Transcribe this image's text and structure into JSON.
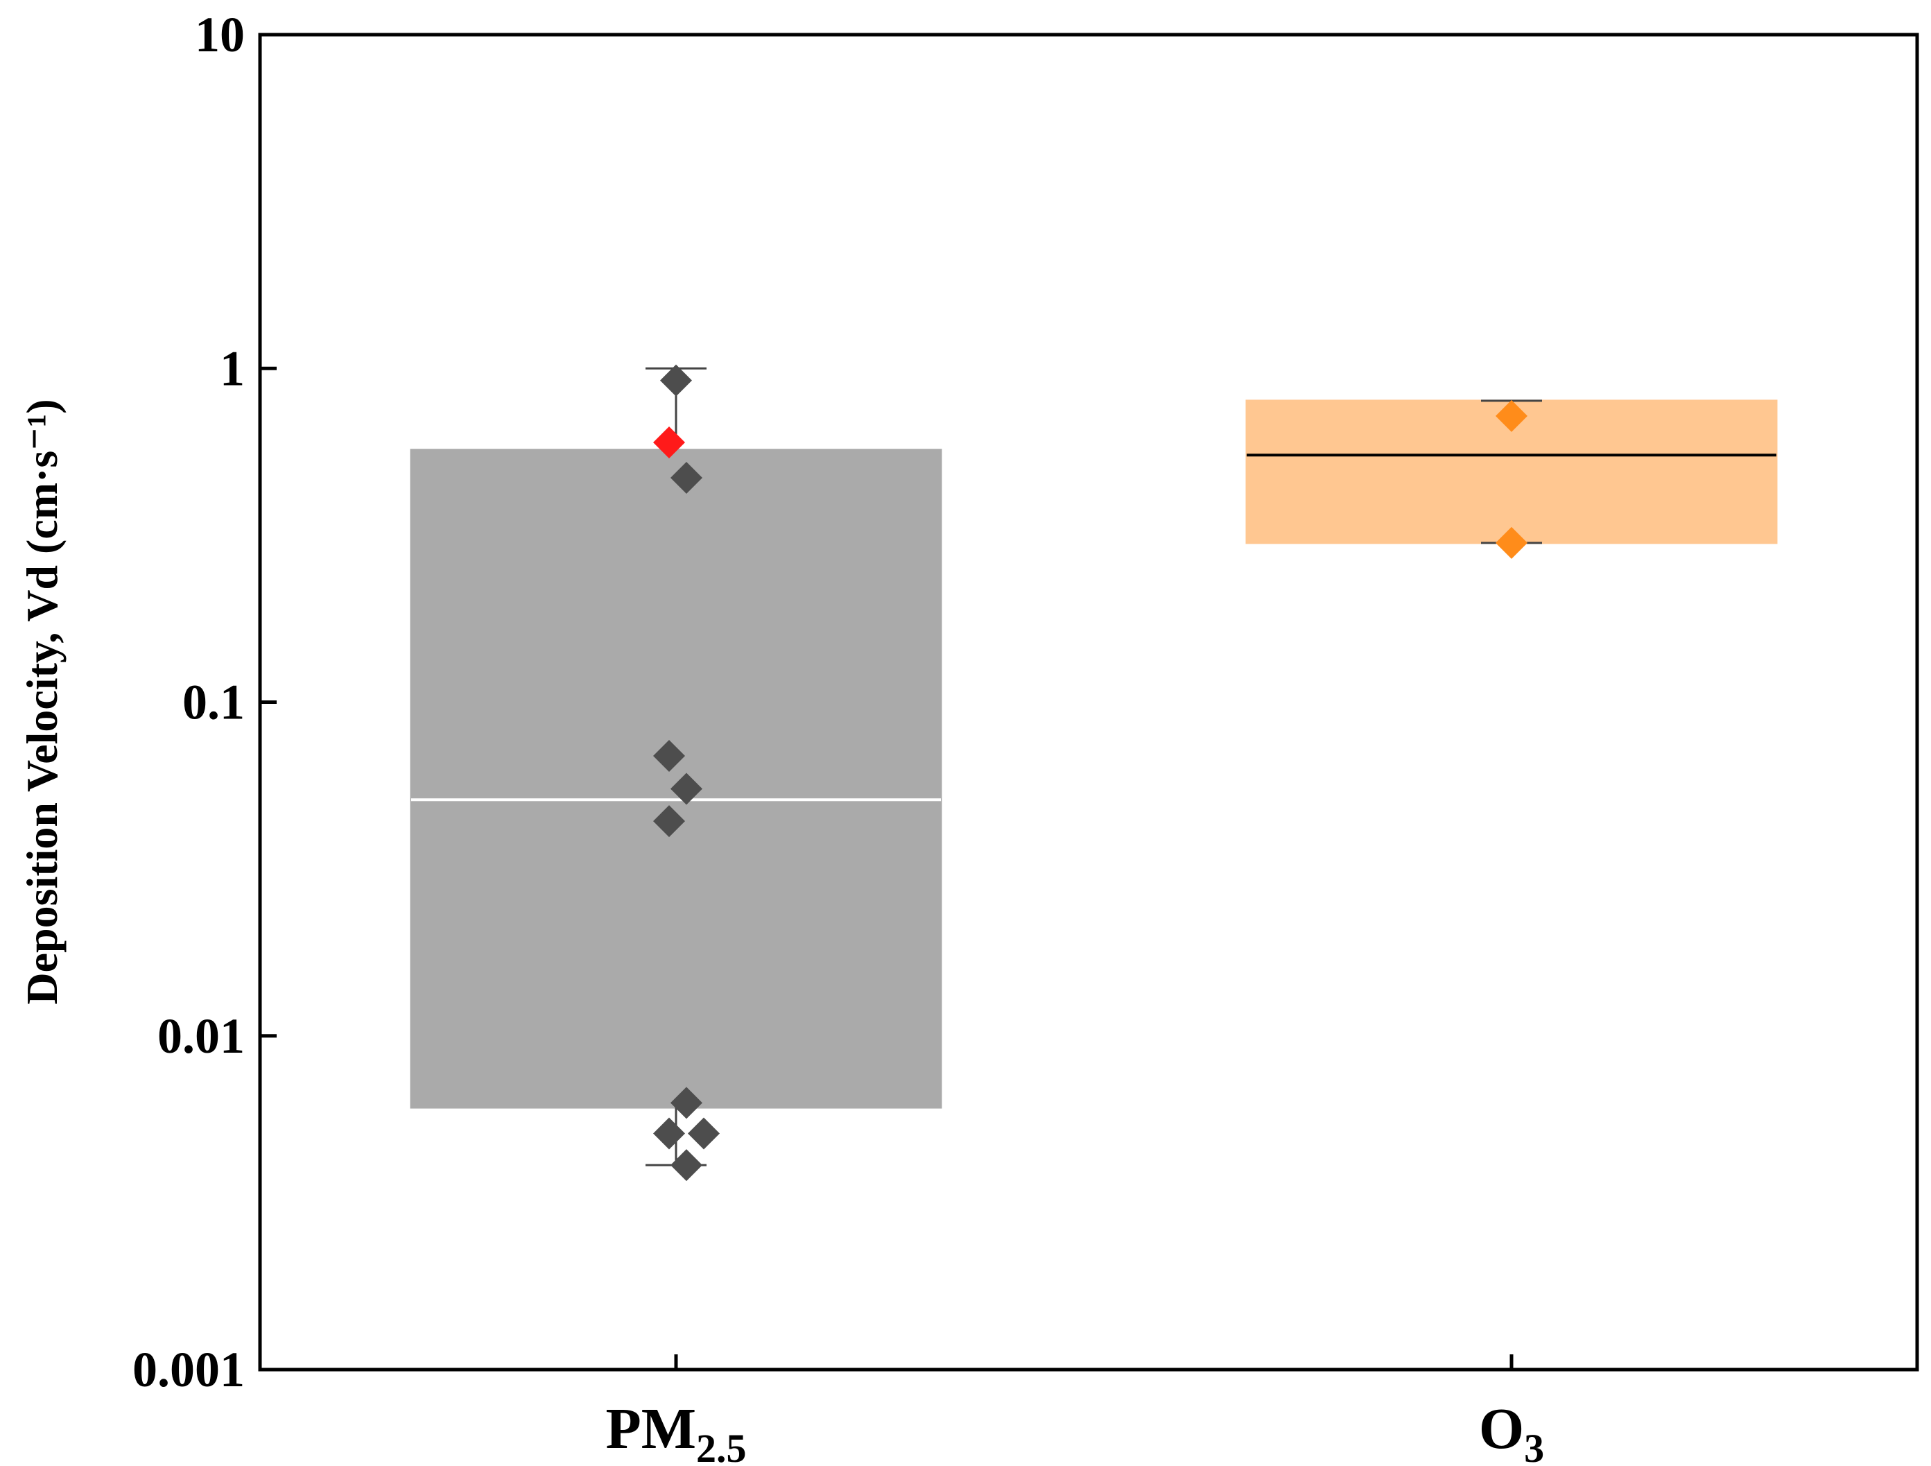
{
  "chart_data": {
    "type": "box",
    "ylabel": "Deposition Velocity, Vd (cm·s⁻¹)",
    "yscale": "log",
    "ylim": [
      0.001,
      10
    ],
    "yticks": [
      "0.001",
      "0.01",
      "0.1",
      "1",
      "10"
    ],
    "grid": false,
    "legend": "none",
    "categories": [
      {
        "main": "PM",
        "sub": "2.5"
      },
      {
        "main": "O",
        "sub": "3"
      }
    ],
    "boxes": [
      {
        "category_index": 0,
        "fill": "#aaaaaa",
        "median_color": "#ffffff",
        "q1": 0.0061,
        "median": 0.051,
        "q3": 0.57,
        "whisker_low": 0.0041,
        "whisker_high": 1.0,
        "points": [
          {
            "value": 0.92,
            "color": "#4d4d4d"
          },
          {
            "value": 0.6,
            "color": "#ff1a1a"
          },
          {
            "value": 0.47,
            "color": "#4d4d4d"
          },
          {
            "value": 0.069,
            "color": "#4d4d4d"
          },
          {
            "value": 0.055,
            "color": "#4d4d4d"
          },
          {
            "value": 0.044,
            "color": "#4d4d4d"
          },
          {
            "value": 0.0063,
            "color": "#4d4d4d"
          },
          {
            "value": 0.0051,
            "color": "#4d4d4d"
          },
          {
            "value": 0.0051,
            "color": "#4d4d4d"
          },
          {
            "value": 0.0041,
            "color": "#4d4d4d"
          }
        ]
      },
      {
        "category_index": 1,
        "fill": "#ffc791",
        "median_color": "#000000",
        "q1": 0.3,
        "median": 0.55,
        "q3": 0.8,
        "whisker_low": 0.3,
        "whisker_high": 0.8,
        "points": [
          {
            "value": 0.72,
            "color": "#ff8c1a"
          },
          {
            "value": 0.3,
            "color": "#ff8c1a"
          }
        ]
      }
    ]
  }
}
